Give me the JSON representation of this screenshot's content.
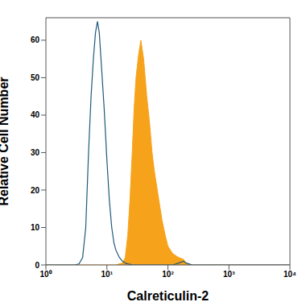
{
  "chart_data": {
    "type": "histogram",
    "x_label": "Calreticulin-2",
    "y_label": "Relative Cell Number",
    "log": "x",
    "grid": false,
    "xlim": [
      1,
      10000
    ],
    "xticks": [
      {
        "value": 1,
        "label": "10⁰"
      },
      {
        "value": 10,
        "label": "10¹"
      },
      {
        "value": 100,
        "label": "10²"
      },
      {
        "value": 1000,
        "label": "10³"
      },
      {
        "value": 10000,
        "label": "10⁴"
      }
    ],
    "ylim": [
      0,
      66
    ],
    "yticks": [
      0,
      10,
      20,
      30,
      40,
      50,
      60
    ],
    "x": [
      1,
      2,
      3,
      3.5,
      4,
      4.5,
      5,
      5.5,
      6,
      6.5,
      7,
      7.5,
      8,
      9,
      10,
      11,
      12,
      13,
      14,
      16,
      18,
      20,
      22,
      24,
      26,
      28,
      30,
      33,
      36,
      40,
      45,
      50,
      55,
      60,
      70,
      80,
      90,
      100,
      120,
      150,
      180,
      200,
      250,
      500,
      10000
    ],
    "series": [
      {
        "type": "area",
        "color": "#f7a21b",
        "values": [
          0,
          0,
          0,
          0,
          0,
          0,
          0,
          0,
          0,
          0,
          0,
          0,
          0,
          0,
          0,
          0,
          0,
          0,
          0,
          0.3,
          0.5,
          2,
          8,
          18,
          30,
          42,
          50,
          56,
          60,
          55,
          45,
          38,
          30,
          25,
          18,
          12,
          8,
          5,
          3,
          2,
          1.5,
          0.5,
          0,
          0,
          0
        ]
      },
      {
        "type": "line",
        "color": "#1f5a7a",
        "values": [
          0,
          0,
          0,
          0.3,
          2,
          10,
          30,
          45,
          55,
          62,
          65,
          62,
          55,
          42,
          28,
          17,
          10,
          6,
          4,
          2,
          1,
          0.5,
          0.3,
          0.2,
          0,
          0,
          0,
          0,
          0,
          0,
          0,
          0,
          0,
          0,
          0,
          0,
          0,
          0,
          0,
          0.5,
          1,
          0.5,
          0,
          0,
          0
        ]
      }
    ]
  }
}
